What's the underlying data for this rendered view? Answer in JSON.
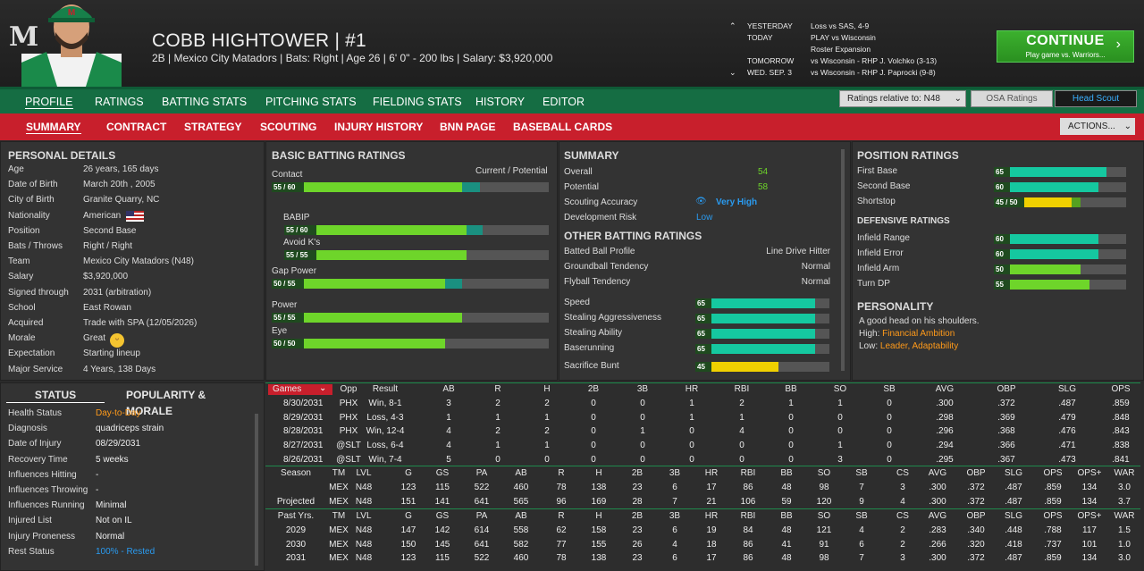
{
  "header": {
    "name": "COBB HIGHTOWER  |  #1",
    "info": "2B | Mexico City Matadors  |  Bats: Right  |  Age 26  |  6' 0\" - 200 lbs  |  Salary: $3,920,000",
    "logo": "M"
  },
  "schedule": [
    {
      "day": "YESTERDAY",
      "event": "Loss vs SAS, 4-9"
    },
    {
      "day": "TODAY",
      "event": "PLAY vs Wisconsin"
    },
    {
      "day": "",
      "event": "Roster Expansion"
    },
    {
      "day": "TOMORROW",
      "event": "vs Wisconsin - RHP J. Volchko (3-13)"
    },
    {
      "day": "WED. SEP. 3",
      "event": "vs Wisconsin - RHP J. Paprocki (9-8)"
    }
  ],
  "continue": {
    "label": "CONTINUE",
    "sub": "Play game vs. Warriors..."
  },
  "nav1": [
    "PROFILE",
    "RATINGS",
    "BATTING STATS",
    "PITCHING STATS",
    "FIELDING STATS",
    "HISTORY",
    "EDITOR"
  ],
  "nav2": [
    "SUMMARY",
    "CONTRACT",
    "STRATEGY",
    "SCOUTING",
    "INJURY HISTORY",
    "BNN PAGE",
    "BASEBALL CARDS"
  ],
  "ratings_select": "Ratings relative to: N48",
  "osa": "OSA Ratings",
  "scout": "Head Scout",
  "actions": "ACTIONS...",
  "personal": {
    "title": "PERSONAL DETAILS",
    "rows": [
      [
        "Age",
        "26 years, 165 days"
      ],
      [
        "Date of Birth",
        "March 20th , 2005"
      ],
      [
        "City of Birth",
        "Granite Quarry, NC"
      ],
      [
        "Nationality",
        "American"
      ],
      [
        "Position",
        "Second Base"
      ],
      [
        "Bats / Throws",
        "Right / Right"
      ],
      [
        "Team",
        "Mexico City Matadors (N48)"
      ],
      [
        "Salary",
        "$3,920,000"
      ],
      [
        "Signed through",
        "2031 (arbitration)"
      ],
      [
        "School",
        "East Rowan"
      ],
      [
        "Acquired",
        "Trade with SPA (12/05/2026)"
      ],
      [
        "Morale",
        "Great"
      ],
      [
        "Expectation",
        "Starting lineup"
      ],
      [
        "Major Service",
        "4 Years, 138 Days"
      ]
    ]
  },
  "status": {
    "tab1": "STATUS",
    "tab2": "POPULARITY & MORALE",
    "rows": [
      [
        "Health Status",
        "Day-to-Day"
      ],
      [
        "Diagnosis",
        "quadriceps strain"
      ],
      [
        "Date of Injury",
        "08/29/2031"
      ],
      [
        "Recovery Time",
        "5 weeks"
      ],
      [
        "Influences Hitting",
        "-"
      ],
      [
        "Influences Throwing",
        "-"
      ],
      [
        "Influences Running",
        "Minimal"
      ],
      [
        "Injured List",
        "Not on IL"
      ],
      [
        "Injury Proneness",
        "Normal"
      ],
      [
        "Rest Status",
        "100% - Rested"
      ]
    ]
  },
  "batting": {
    "title": "BASIC BATTING RATINGS",
    "legend": "Current / Potential",
    "rows": [
      {
        "label": "Contact",
        "val": "55 / 60",
        "cur": 55,
        "pot": 60,
        "indent": false
      },
      {
        "label": "BABIP",
        "val": "55 / 60",
        "cur": 55,
        "pot": 60,
        "indent": true
      },
      {
        "label": "Avoid K's",
        "val": "55 / 55",
        "cur": 55,
        "pot": 55,
        "indent": true
      },
      {
        "label": "Gap Power",
        "val": "50 / 55",
        "cur": 50,
        "pot": 55,
        "indent": false
      },
      {
        "label": "Power",
        "val": "55 / 55",
        "cur": 55,
        "pot": 55,
        "indent": false
      },
      {
        "label": "Eye",
        "val": "50 / 50",
        "cur": 50,
        "pot": 50,
        "indent": false
      }
    ]
  },
  "summary": {
    "title": "SUMMARY",
    "overall_l": "Overall",
    "overall": "54",
    "potential_l": "Potential",
    "potential": "58",
    "sa_l": "Scouting Accuracy",
    "sa": "Very High",
    "dr_l": "Development Risk",
    "dr": "Low",
    "other_title": "OTHER BATTING RATINGS",
    "other": [
      [
        "Batted Ball Profile",
        "Line Drive Hitter"
      ],
      [
        "Groundball Tendency",
        "Normal"
      ],
      [
        "Flyball Tendency",
        "Normal"
      ]
    ],
    "speed": [
      {
        "label": "Speed",
        "val": "65",
        "v": 65
      },
      {
        "label": "Stealing Aggressiveness",
        "val": "65",
        "v": 65
      },
      {
        "label": "Stealing Ability",
        "val": "65",
        "v": 65
      },
      {
        "label": "Baserunning",
        "val": "65",
        "v": 65
      },
      {
        "label": "Sacrifice Bunt",
        "val": "45",
        "v": 45
      }
    ]
  },
  "position": {
    "title": "POSITION RATINGS",
    "rows": [
      {
        "label": "First Base",
        "val": "65",
        "v": 65
      },
      {
        "label": "Second Base",
        "val": "60",
        "v": 60
      },
      {
        "label": "Shortstop",
        "val": "45 / 50",
        "v": 45,
        "pot": 50
      }
    ],
    "def_title": "DEFENSIVE RATINGS",
    "def": [
      {
        "label": "Infield Range",
        "val": "60",
        "v": 60
      },
      {
        "label": "Infield Error",
        "val": "60",
        "v": 60
      },
      {
        "label": "Infield Arm",
        "val": "50",
        "v": 50
      },
      {
        "label": "Turn DP",
        "val": "55",
        "v": 55
      }
    ],
    "pers_title": "PERSONALITY",
    "pers1": "A good head on his shoulders.",
    "high_l": "High:",
    "high": "Financial Ambition",
    "low_l": "Low:",
    "low": "Leader, Adaptability"
  },
  "games": {
    "headers": [
      "Games",
      "Opp",
      "Result",
      "AB",
      "R",
      "H",
      "2B",
      "3B",
      "HR",
      "RBI",
      "BB",
      "SO",
      "SB",
      "AVG",
      "OBP",
      "SLG",
      "OPS"
    ],
    "rows": [
      [
        "8/30/2031",
        "PHX",
        "Win, 8-1",
        "3",
        "2",
        "2",
        "0",
        "0",
        "1",
        "2",
        "1",
        "1",
        "0",
        ".300",
        ".372",
        ".487",
        ".859"
      ],
      [
        "8/29/2031",
        "PHX",
        "Loss, 4-3",
        "1",
        "1",
        "1",
        "0",
        "0",
        "1",
        "1",
        "0",
        "0",
        "0",
        ".298",
        ".369",
        ".479",
        ".848"
      ],
      [
        "8/28/2031",
        "PHX",
        "Win, 12-4",
        "4",
        "2",
        "2",
        "0",
        "1",
        "0",
        "4",
        "0",
        "0",
        "0",
        ".296",
        ".368",
        ".476",
        ".843"
      ],
      [
        "8/27/2031",
        "@SLT",
        "Loss, 6-4",
        "4",
        "1",
        "1",
        "0",
        "0",
        "0",
        "0",
        "0",
        "1",
        "0",
        ".294",
        ".366",
        ".471",
        ".838"
      ],
      [
        "8/26/2031",
        "@SLT",
        "Win, 7-4",
        "5",
        "0",
        "0",
        "0",
        "0",
        "0",
        "0",
        "0",
        "3",
        "0",
        ".295",
        ".367",
        ".473",
        ".841"
      ]
    ]
  },
  "season": {
    "headers": [
      "Season",
      "TM",
      "LVL",
      "G",
      "GS",
      "PA",
      "AB",
      "R",
      "H",
      "2B",
      "3B",
      "HR",
      "RBI",
      "BB",
      "SO",
      "SB",
      "CS",
      "AVG",
      "OBP",
      "SLG",
      "OPS",
      "OPS+",
      "WAR"
    ],
    "rows": [
      [
        "",
        "MEX",
        "N48",
        "123",
        "115",
        "522",
        "460",
        "78",
        "138",
        "23",
        "6",
        "17",
        "86",
        "48",
        "98",
        "7",
        "3",
        ".300",
        ".372",
        ".487",
        ".859",
        "134",
        "3.0"
      ],
      [
        "Projected",
        "MEX",
        "N48",
        "151",
        "141",
        "641",
        "565",
        "96",
        "169",
        "28",
        "7",
        "21",
        "106",
        "59",
        "120",
        "9",
        "4",
        ".300",
        ".372",
        ".487",
        ".859",
        "134",
        "3.7"
      ]
    ]
  },
  "past": {
    "headers": [
      "Past Yrs.",
      "TM",
      "LVL",
      "G",
      "GS",
      "PA",
      "AB",
      "R",
      "H",
      "2B",
      "3B",
      "HR",
      "RBI",
      "BB",
      "SO",
      "SB",
      "CS",
      "AVG",
      "OBP",
      "SLG",
      "OPS",
      "OPS+",
      "WAR"
    ],
    "rows": [
      [
        "2029",
        "MEX",
        "N48",
        "147",
        "142",
        "614",
        "558",
        "62",
        "158",
        "23",
        "6",
        "19",
        "84",
        "48",
        "121",
        "4",
        "2",
        ".283",
        ".340",
        ".448",
        ".788",
        "117",
        "1.5"
      ],
      [
        "2030",
        "MEX",
        "N48",
        "150",
        "145",
        "641",
        "582",
        "77",
        "155",
        "26",
        "4",
        "18",
        "86",
        "41",
        "91",
        "6",
        "2",
        ".266",
        ".320",
        ".418",
        ".737",
        "101",
        "1.0"
      ],
      [
        "2031",
        "MEX",
        "N48",
        "123",
        "115",
        "522",
        "460",
        "78",
        "138",
        "23",
        "6",
        "17",
        "86",
        "48",
        "98",
        "7",
        "3",
        ".300",
        ".372",
        ".487",
        ".859",
        "134",
        "3.0"
      ]
    ]
  },
  "colors": {
    "green": "#156d43",
    "red": "#c81f2c",
    "teal": "#15c8a0",
    "lime": "#6ed52a",
    "yellow": "#f0d000",
    "orange": "#ff9a1a",
    "blue": "#2a9bf0"
  }
}
